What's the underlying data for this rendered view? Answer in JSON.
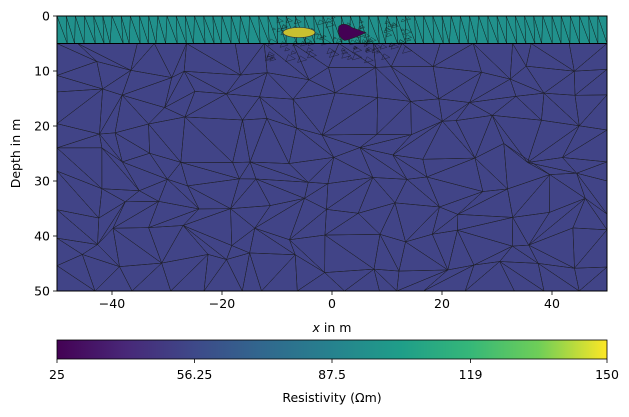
{
  "chart_data": {
    "type": "heatmap",
    "plot_kind": "triangular finite-element mesh with resistivity regions",
    "xlabel_var": "x",
    "xlabel_rest": " in m",
    "ylabel": "Depth in m",
    "xlim": [
      -50,
      50
    ],
    "ylim": [
      0,
      50
    ],
    "y_inverted": true,
    "x_ticks": [
      -40,
      -20,
      0,
      20,
      40
    ],
    "x_tick_labels": [
      "−40",
      "−20",
      "0",
      "20",
      "40"
    ],
    "y_ticks": [
      0,
      10,
      20,
      30,
      40,
      50
    ],
    "y_tick_labels": [
      "0",
      "10",
      "20",
      "30",
      "40",
      "50"
    ],
    "colorbar": {
      "label": "Resistivity (Ωm)",
      "orientation": "horizontal",
      "colormap": "viridis",
      "range": [
        25,
        150
      ],
      "ticks": [
        25,
        56.25,
        87.5,
        119,
        150
      ],
      "tick_labels": [
        "25",
        "56.25",
        "87.5",
        "119",
        "150"
      ]
    },
    "regions": [
      {
        "name": "top layer",
        "depth_range": [
          0,
          5
        ],
        "resistivity": 87.5,
        "color": "#21918c"
      },
      {
        "name": "background",
        "depth_range": [
          5,
          50
        ],
        "resistivity": 50,
        "color": "#414487"
      },
      {
        "name": "conductive anomaly",
        "center": [
          2.5,
          3
        ],
        "resistivity": 25,
        "color": "#440154"
      },
      {
        "name": "resistive anomaly",
        "center": [
          -6,
          3
        ],
        "resistivity": 150,
        "color": "#fde725"
      }
    ],
    "grid": false,
    "legend": "none"
  }
}
